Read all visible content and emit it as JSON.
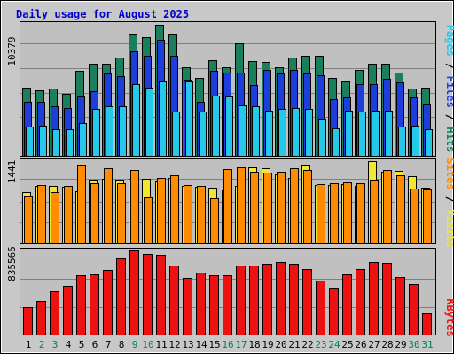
{
  "chart_data": [
    {
      "type": "bar",
      "title": "Daily usage for August 2025",
      "panel": "top",
      "categories": [
        "1",
        "2",
        "3",
        "4",
        "5",
        "6",
        "7",
        "8",
        "9",
        "10",
        "11",
        "12",
        "13",
        "14",
        "15",
        "16",
        "17",
        "18",
        "19",
        "20",
        "21",
        "22",
        "23",
        "24",
        "25",
        "26",
        "27",
        "28",
        "29",
        "30",
        "31"
      ],
      "y_tick_label": "10379",
      "y_max_value": 10379,
      "series": [
        {
          "name": "Hits",
          "color": "#1a7f5a",
          "values": [
            5400,
            5200,
            5300,
            4900,
            6700,
            7300,
            7300,
            7800,
            9700,
            9400,
            10350,
            9700,
            7000,
            6200,
            7600,
            7000,
            8900,
            7500,
            7400,
            7000,
            7800,
            7900,
            7900,
            6200,
            5900,
            6800,
            7300,
            7300,
            6600,
            5300,
            5400
          ]
        },
        {
          "name": "Files",
          "color": "#1e3edc",
          "values": [
            4300,
            4300,
            3900,
            3800,
            4700,
            5100,
            6500,
            6300,
            8300,
            7900,
            9200,
            7900,
            6000,
            4300,
            6700,
            6600,
            6600,
            5600,
            6800,
            6500,
            6800,
            6500,
            6400,
            4500,
            4600,
            5700,
            5700,
            6100,
            5800,
            4600,
            4100
          ]
        },
        {
          "name": "Pages",
          "color": "#24c8e8",
          "values": [
            2300,
            2400,
            2100,
            2100,
            2600,
            3700,
            3900,
            3900,
            5700,
            5400,
            5900,
            3500,
            5900,
            3500,
            4800,
            4700,
            4000,
            3900,
            3600,
            3700,
            3800,
            3700,
            2900,
            2200,
            3600,
            3500,
            3600,
            3600,
            2300,
            2400,
            2100
          ]
        }
      ]
    },
    {
      "type": "bar",
      "panel": "middle",
      "categories": [
        "1",
        "2",
        "3",
        "4",
        "5",
        "6",
        "7",
        "8",
        "9",
        "10",
        "11",
        "12",
        "13",
        "14",
        "15",
        "16",
        "17",
        "18",
        "19",
        "20",
        "21",
        "22",
        "23",
        "24",
        "25",
        "26",
        "27",
        "28",
        "29",
        "30",
        "31"
      ],
      "y_tick_label": "1441",
      "y_max_value": 1441,
      "series": [
        {
          "name": "Visits",
          "color": "#f0e830",
          "values": [
            900,
            1000,
            1000,
            990,
            920,
            1110,
            1130,
            1110,
            1130,
            1130,
            1090,
            1140,
            1010,
            990,
            970,
            930,
            1000,
            1340,
            1320,
            1210,
            1150,
            1360,
            1020,
            1020,
            1040,
            1010,
            1440,
            1260,
            1270,
            1180,
            980
          ]
        },
        {
          "name": "Sites",
          "color": "#ff8c00",
          "values": [
            820,
            1020,
            900,
            1010,
            1360,
            1060,
            1310,
            1060,
            1280,
            800,
            1150,
            1200,
            1030,
            1010,
            790,
            1300,
            1330,
            1260,
            1240,
            1250,
            1310,
            1280,
            1040,
            1060,
            1070,
            1060,
            1110,
            1290,
            1190,
            960,
            940
          ]
        }
      ]
    },
    {
      "type": "bar",
      "panel": "bottom",
      "categories": [
        "1",
        "2",
        "3",
        "4",
        "5",
        "6",
        "7",
        "8",
        "9",
        "10",
        "11",
        "12",
        "13",
        "14",
        "15",
        "16",
        "17",
        "18",
        "19",
        "20",
        "21",
        "22",
        "23",
        "24",
        "25",
        "26",
        "27",
        "28",
        "29",
        "30",
        "31"
      ],
      "y_tick_label": "835565",
      "y_max_value": 835565,
      "series": [
        {
          "name": "KBytes",
          "color": "#ee1111",
          "values": [
            270000,
            330000,
            430000,
            480000,
            590000,
            600000,
            640000,
            760000,
            835000,
            800000,
            790000,
            690000,
            560000,
            620000,
            590000,
            590000,
            690000,
            690000,
            700000,
            720000,
            700000,
            650000,
            540000,
            470000,
            600000,
            650000,
            720000,
            710000,
            570000,
            500000,
            210000
          ]
        }
      ]
    }
  ],
  "day_label_colors": {
    "weekday": "#000000",
    "weekend": "#00805a"
  },
  "weekend_days": [
    2,
    3,
    9,
    10,
    16,
    17,
    23,
    24,
    30,
    31
  ]
}
